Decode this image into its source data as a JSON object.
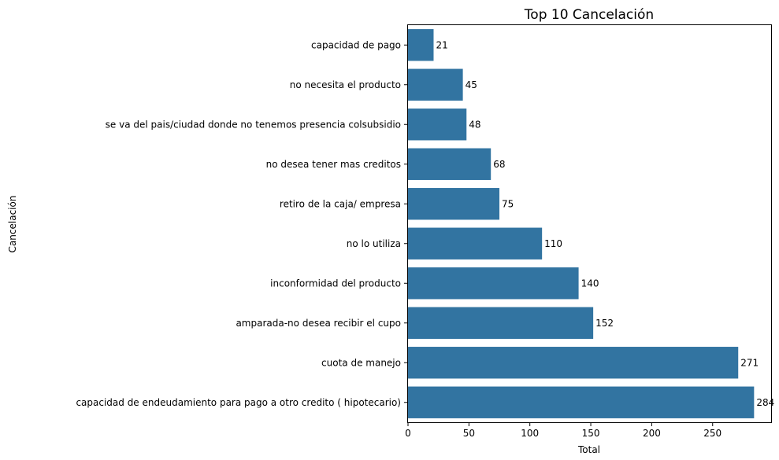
{
  "chart_data": {
    "type": "bar",
    "orientation": "horizontal",
    "title": "Top 10 Cancelación",
    "xlabel": "Total",
    "ylabel": "Cancelación",
    "categories": [
      "capacidad de  pago",
      "no necesita el producto",
      "se va del pais/ciudad donde no tenemos presencia colsubsidio",
      "no desea tener mas creditos",
      "retiro de la caja/ empresa",
      "no lo utiliza",
      "inconformidad del producto",
      "amparada-no desea recibir el cupo",
      "cuota de manejo",
      "capacidad de endeudamiento para pago a otro credito ( hipotecario)"
    ],
    "values": [
      21,
      45,
      48,
      68,
      75,
      110,
      140,
      152,
      271,
      284
    ],
    "data_labels": [
      "21",
      "45",
      "48",
      "68",
      "75",
      "110",
      "140",
      "152",
      "271",
      "284"
    ],
    "xlim": [
      0,
      298
    ],
    "xticks": [
      0,
      50,
      100,
      150,
      200,
      250
    ],
    "xtick_labels": [
      "0",
      "50",
      "100",
      "150",
      "200",
      "250"
    ],
    "grid": false,
    "bar_color": "#3274a1"
  }
}
